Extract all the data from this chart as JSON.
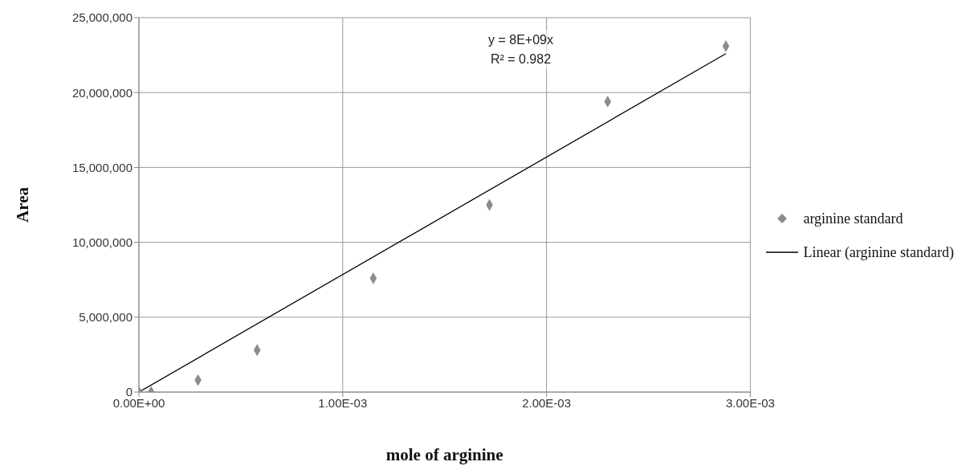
{
  "chart_data": {
    "type": "scatter",
    "xlabel": "mole of arginine",
    "ylabel": "Area",
    "xlim": [
      0,
      0.003
    ],
    "xticks": [
      {
        "value": 0,
        "label": "0.00E+00"
      },
      {
        "value": 0.001,
        "label": "1.00E-03"
      },
      {
        "value": 0.002,
        "label": "2.00E-03"
      },
      {
        "value": 0.003,
        "label": "3.00E-03"
      }
    ],
    "ylim": [
      0,
      25000000
    ],
    "yticks": [
      {
        "value": 0,
        "label": "0"
      },
      {
        "value": 5000000,
        "label": "5,000,000"
      },
      {
        "value": 10000000,
        "label": "10,000,000"
      },
      {
        "value": 15000000,
        "label": "15,000,000"
      },
      {
        "value": 20000000,
        "label": "20,000,000"
      },
      {
        "value": 25000000,
        "label": "25,000,000"
      }
    ],
    "grid": true,
    "legend": "right",
    "series": [
      {
        "name": "arginine standard",
        "marker": "diamond",
        "color": "#8c8c8c",
        "x": [
          0,
          6e-05,
          0.00029,
          0.00058,
          0.00115,
          0.00172,
          0.0023,
          0.00288
        ],
        "values": [
          0,
          0,
          800000,
          2800000,
          7600000,
          12500000,
          19400000,
          23100000
        ]
      },
      {
        "name": "Linear (arginine standard)",
        "type": "line",
        "marker": "none",
        "line_style": "solid",
        "color": "#000000",
        "x": [
          0,
          0.00288
        ],
        "values": [
          0,
          22600000
        ]
      }
    ],
    "annotations": [
      "y = 8E+09x",
      "R² = 0.982"
    ]
  }
}
